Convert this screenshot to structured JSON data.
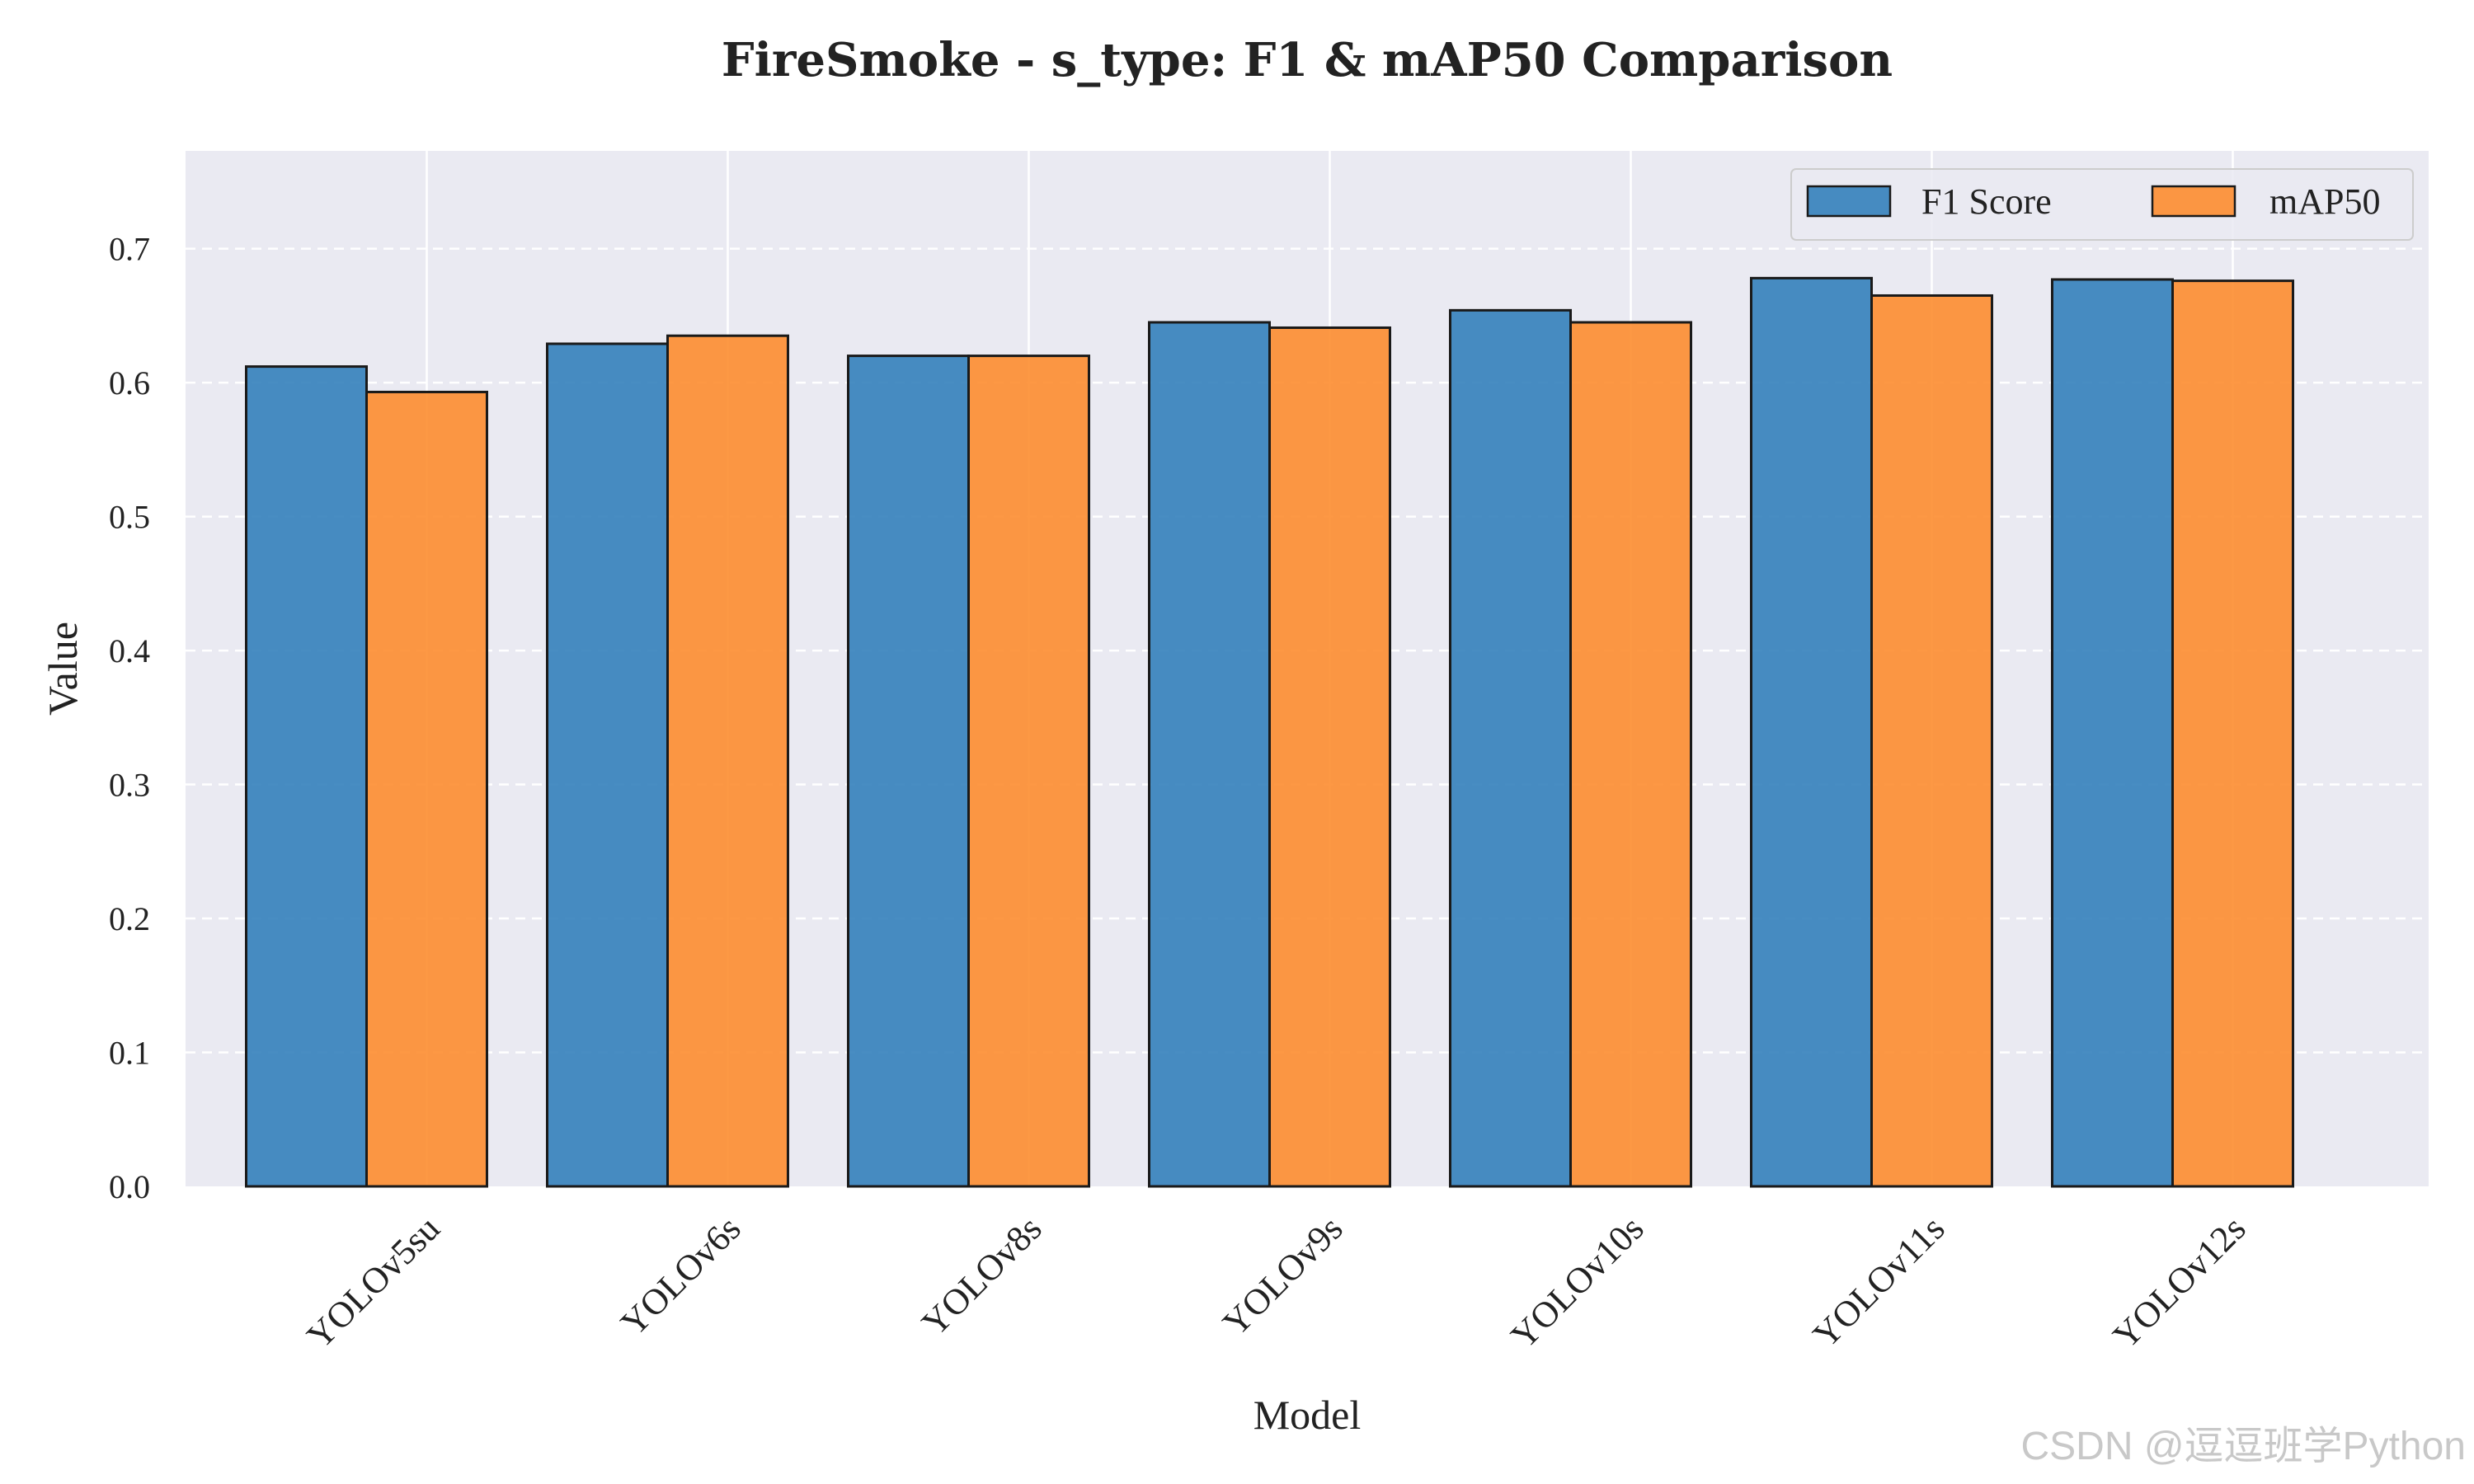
{
  "chart_data": {
    "type": "bar",
    "title": "FireSmoke - s_type: F1 & mAP50 Comparison",
    "xlabel": "Model",
    "ylabel": "Value",
    "categories": [
      "YOLOv5su",
      "YOLOv6s",
      "YOLOv8s",
      "YOLOv9s",
      "YOLOv10s",
      "YOLOv11s",
      "YOLOv12s"
    ],
    "series": [
      {
        "name": "F1 Score",
        "color": "#2f7dba",
        "values": [
          0.612,
          0.629,
          0.62,
          0.645,
          0.654,
          0.678,
          0.677
        ]
      },
      {
        "name": "mAP50",
        "color": "#fd8a2a",
        "values": [
          0.593,
          0.635,
          0.62,
          0.641,
          0.645,
          0.665,
          0.676
        ]
      }
    ],
    "ylim": [
      0,
      0.773
    ],
    "yticks": [
      0.0,
      0.1,
      0.2,
      0.3,
      0.4,
      0.5,
      0.6,
      0.7
    ],
    "ytick_labels": [
      "0.0",
      "0.1",
      "0.2",
      "0.3",
      "0.4",
      "0.5",
      "0.6",
      "0.7"
    ],
    "grid": true,
    "legend_position": "top-right",
    "background_color": "#eaeaf2"
  },
  "watermark": "CSDN @逗逗班学Python"
}
